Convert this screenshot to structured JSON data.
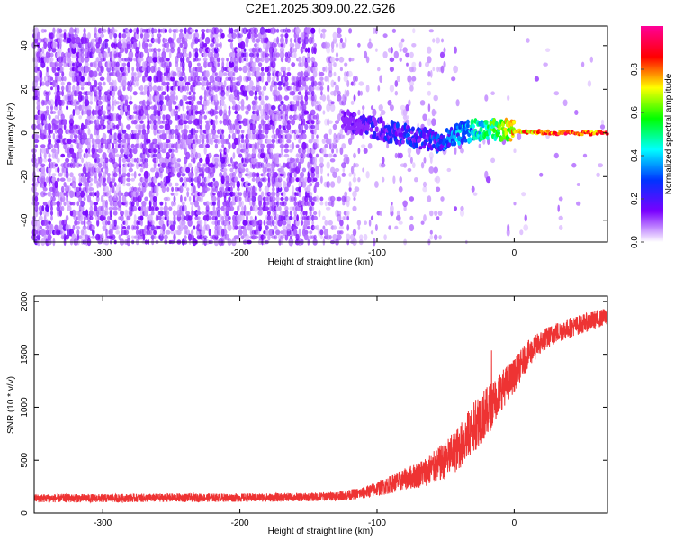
{
  "figure_title": "C2E1.2025.309.00.22.G26",
  "chart_data": [
    {
      "type": "heatmap",
      "title": "C2E1.2025.309.00.22.G26",
      "xlabel": "Height of straight line (km)",
      "ylabel": "Frequency (Hz)",
      "xlim": [
        -350,
        68
      ],
      "ylim": [
        -50,
        49
      ],
      "xticks": [
        -300,
        -200,
        -100,
        0
      ],
      "xtick_labels": [
        "-300",
        "-200",
        "-100",
        "0"
      ],
      "yticks": [
        -40,
        -20,
        0,
        20,
        40
      ],
      "ytick_labels": [
        "-40",
        "-20",
        "0",
        "20",
        "40"
      ],
      "colorbar": {
        "label": "Normalized spectral amplitude",
        "range": [
          0.0,
          1.0
        ],
        "ticks": [
          0.0,
          0.2,
          0.4,
          0.6,
          0.8
        ],
        "tick_labels": [
          "0.0",
          "0.2",
          "0.4",
          "0.6",
          "0.8"
        ],
        "colormap": [
          "#ffffff",
          "#7a00ff",
          "#0033ff",
          "#00ffff",
          "#00ff00",
          "#ffff00",
          "#ff0000",
          "#ff0099"
        ]
      },
      "signal_track": [
        {
          "x": -125,
          "f": 6,
          "a": 0.15
        },
        {
          "x": -100,
          "f": 2,
          "a": 0.28
        },
        {
          "x": -80,
          "f": -1,
          "a": 0.32
        },
        {
          "x": -55,
          "f": -4,
          "a": 0.35
        },
        {
          "x": -40,
          "f": 0,
          "a": 0.45
        },
        {
          "x": -20,
          "f": 2,
          "a": 0.6
        },
        {
          "x": 0,
          "f": 1,
          "a": 0.85
        },
        {
          "x": 30,
          "f": 0,
          "a": 0.95
        },
        {
          "x": 68,
          "f": 0,
          "a": 0.95
        }
      ]
    },
    {
      "type": "line",
      "xlabel": "Height of straight line (km)",
      "ylabel": "SNR (10 * v/v)",
      "xlim": [
        -350,
        68
      ],
      "ylim": [
        0,
        2050
      ],
      "xticks": [
        -300,
        -200,
        -100,
        0
      ],
      "xtick_labels": [
        "-300",
        "-200",
        "-100",
        "0"
      ],
      "yticks": [
        0,
        500,
        1000,
        1500,
        2000
      ],
      "ytick_labels": [
        "0",
        "500",
        "1000",
        "1500",
        "2000"
      ],
      "series": [
        {
          "name": "SNR",
          "color": "#ee3333",
          "x": [
            -350,
            -300,
            -250,
            -200,
            -150,
            -125,
            -110,
            -100,
            -90,
            -80,
            -70,
            -60,
            -50,
            -40,
            -30,
            -25,
            -20,
            -15,
            -10,
            0,
            10,
            20,
            30,
            40,
            50,
            60,
            68
          ],
          "y": [
            140,
            140,
            145,
            145,
            150,
            165,
            190,
            230,
            270,
            320,
            360,
            420,
            500,
            620,
            800,
            900,
            950,
            1050,
            1150,
            1300,
            1500,
            1620,
            1700,
            1750,
            1790,
            1830,
            1860
          ],
          "spread": [
            80,
            80,
            80,
            80,
            80,
            90,
            110,
            140,
            170,
            200,
            250,
            300,
            360,
            420,
            480,
            520,
            480,
            430,
            380,
            320,
            260,
            220,
            200,
            190,
            180,
            170,
            160
          ]
        }
      ]
    }
  ]
}
